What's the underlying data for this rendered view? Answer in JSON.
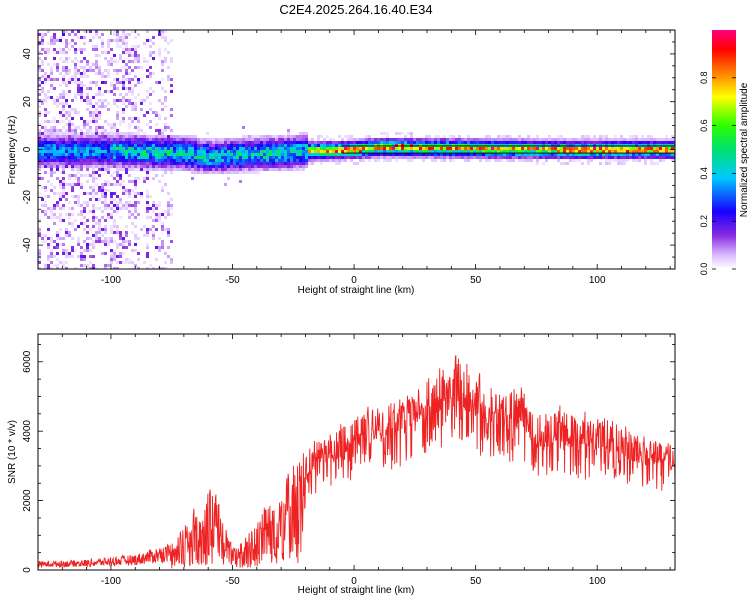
{
  "title": "C2E4.2025.264.16.40.E34",
  "chart_data": [
    {
      "type": "heatmap",
      "name": "spectrogram",
      "xlabel": "Height of straight line (km)",
      "ylabel": "Frequency (Hz)",
      "xlim": [
        -130,
        132
      ],
      "ylim": [
        -50,
        50
      ],
      "xticks": [
        -100,
        -50,
        0,
        50,
        100
      ],
      "yticks": [
        -40,
        -20,
        0,
        20,
        40
      ],
      "x_tick_labels": [
        "-100",
        "-50",
        "0",
        "50",
        "100"
      ],
      "y_tick_labels": [
        "-40",
        "-20",
        "0",
        "20",
        "40"
      ],
      "colorbar": {
        "label": "Normalized spectral amplitude",
        "range": [
          0,
          1
        ],
        "ticks": [
          0.0,
          0.2,
          0.4,
          0.6,
          0.8
        ],
        "tick_labels": [
          "0.0",
          "0.2",
          "0.4",
          "0.6",
          "0.8"
        ],
        "colormap": [
          "#ffffff",
          "#d9b8ff",
          "#8a2be2",
          "#1a00ff",
          "#00c8ff",
          "#00e070",
          "#2bff00",
          "#ffff00",
          "#ff8000",
          "#ff0000",
          "#ff0080"
        ]
      },
      "band_center_hz": [
        {
          "x": -130,
          "y": 0.0
        },
        {
          "x": -100,
          "y": 0.0
        },
        {
          "x": -70,
          "y": -1.0
        },
        {
          "x": -60,
          "y": -2.5
        },
        {
          "x": -45,
          "y": -1.5
        },
        {
          "x": -30,
          "y": -1.0
        },
        {
          "x": -20,
          "y": 0.0
        },
        {
          "x": 0,
          "y": 0.5
        },
        {
          "x": 10,
          "y": 1.5
        },
        {
          "x": 50,
          "y": 1.0
        },
        {
          "x": 90,
          "y": 0.5
        },
        {
          "x": 105,
          "y": 0.5
        },
        {
          "x": 132,
          "y": 0.5
        }
      ],
      "reference_lines_hz": [
        -1.5,
        1.5
      ],
      "noise_region_km": [
        -130,
        -75
      ]
    },
    {
      "type": "line",
      "name": "snr",
      "xlabel": "Height of straight line (km)",
      "ylabel": "SNR (10 * v/v)",
      "xlim": [
        -130,
        132
      ],
      "ylim": [
        0,
        6800
      ],
      "xticks": [
        -100,
        -50,
        0,
        50,
        100
      ],
      "yticks": [
        0,
        2000,
        4000,
        6000
      ],
      "x_tick_labels": [
        "-100",
        "-50",
        "0",
        "50",
        "100"
      ],
      "y_tick_labels": [
        "0",
        "2000",
        "4000",
        "6000"
      ],
      "color": "#ee2222",
      "series_envelope": [
        {
          "x": -130,
          "y": 250
        },
        {
          "x": -110,
          "y": 300
        },
        {
          "x": -90,
          "y": 450
        },
        {
          "x": -75,
          "y": 800
        },
        {
          "x": -68,
          "y": 1500
        },
        {
          "x": -62,
          "y": 2300
        },
        {
          "x": -58,
          "y": 2500
        },
        {
          "x": -53,
          "y": 1300
        },
        {
          "x": -48,
          "y": 700
        },
        {
          "x": -42,
          "y": 1200
        },
        {
          "x": -36,
          "y": 2000
        },
        {
          "x": -30,
          "y": 2300
        },
        {
          "x": -24,
          "y": 3300
        },
        {
          "x": -15,
          "y": 3700
        },
        {
          "x": -5,
          "y": 4100
        },
        {
          "x": 5,
          "y": 4600
        },
        {
          "x": 15,
          "y": 4800
        },
        {
          "x": 25,
          "y": 5200
        },
        {
          "x": 35,
          "y": 5800
        },
        {
          "x": 42,
          "y": 6200
        },
        {
          "x": 48,
          "y": 5700
        },
        {
          "x": 55,
          "y": 5300
        },
        {
          "x": 62,
          "y": 5000
        },
        {
          "x": 68,
          "y": 5400
        },
        {
          "x": 75,
          "y": 4500
        },
        {
          "x": 85,
          "y": 4600
        },
        {
          "x": 95,
          "y": 4300
        },
        {
          "x": 105,
          "y": 4400
        },
        {
          "x": 115,
          "y": 4000
        },
        {
          "x": 125,
          "y": 3800
        },
        {
          "x": 132,
          "y": 3600
        }
      ]
    }
  ]
}
